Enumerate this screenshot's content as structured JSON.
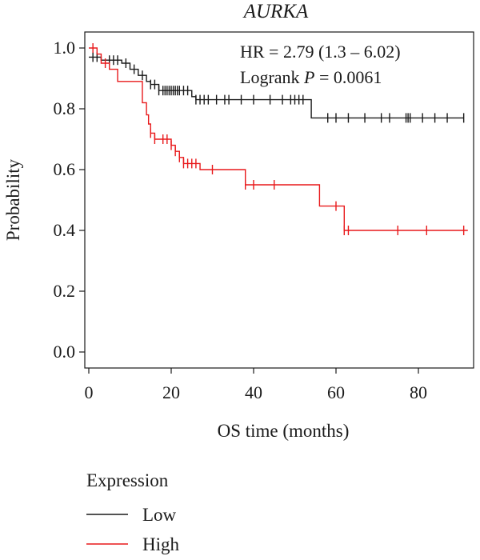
{
  "chart_data": {
    "type": "line",
    "title": "AURKA",
    "xlabel": "OS time (months)",
    "ylabel": "Probability",
    "xlim": [
      0,
      93
    ],
    "ylim": [
      0.0,
      1.0
    ],
    "x_ticks": [
      0,
      20,
      40,
      60,
      80
    ],
    "y_ticks": [
      "0.0",
      "0.2",
      "0.4",
      "0.6",
      "0.8",
      "1.0"
    ],
    "annotations": {
      "hr": "HR = 2.79 (1.3 – 6.02)",
      "logrank_prefix": "Logrank ",
      "logrank_p": "P",
      "logrank_suffix": " = 0.0061"
    },
    "legend": {
      "title": "Expression",
      "position": "bottom-left"
    },
    "series": [
      {
        "name": "Low",
        "color": "#1a1a1a",
        "steps": [
          [
            0,
            0.97
          ],
          [
            3,
            0.96
          ],
          [
            8,
            0.95
          ],
          [
            10,
            0.93
          ],
          [
            12,
            0.91
          ],
          [
            14,
            0.89
          ],
          [
            15,
            0.88
          ],
          [
            17,
            0.86
          ],
          [
            25,
            0.84
          ],
          [
            26,
            0.83
          ],
          [
            54,
            0.77
          ],
          [
            91,
            0.77
          ]
        ],
        "censor": [
          1,
          2,
          5,
          6,
          7,
          9,
          11,
          13,
          15,
          16,
          17,
          18,
          18.5,
          19,
          19.5,
          20,
          20.5,
          21,
          21.5,
          22,
          23,
          24,
          26,
          27,
          28,
          29,
          31,
          33,
          34,
          37,
          40,
          44,
          47,
          49,
          50,
          51,
          52,
          58,
          60,
          63,
          67,
          71,
          73,
          77,
          77.5,
          78,
          81,
          84,
          87,
          91
        ]
      },
      {
        "name": "High",
        "color": "#e8191b",
        "steps": [
          [
            0,
            1.0
          ],
          [
            2,
            0.98
          ],
          [
            3,
            0.95
          ],
          [
            5,
            0.93
          ],
          [
            7,
            0.89
          ],
          [
            13,
            0.82
          ],
          [
            14,
            0.78
          ],
          [
            14.5,
            0.75
          ],
          [
            15,
            0.72
          ],
          [
            16,
            0.7
          ],
          [
            20,
            0.68
          ],
          [
            21,
            0.66
          ],
          [
            22,
            0.64
          ],
          [
            23,
            0.62
          ],
          [
            27,
            0.6
          ],
          [
            38,
            0.55
          ],
          [
            52,
            0.55
          ],
          [
            56,
            0.48
          ],
          [
            61,
            0.48
          ],
          [
            62,
            0.4
          ],
          [
            92,
            0.4
          ]
        ],
        "censor": [
          1,
          4,
          15,
          16,
          18,
          19,
          20,
          21,
          22,
          23,
          24,
          25,
          26,
          30,
          38,
          40,
          45,
          60,
          62,
          63,
          75,
          82,
          91
        ]
      }
    ]
  }
}
